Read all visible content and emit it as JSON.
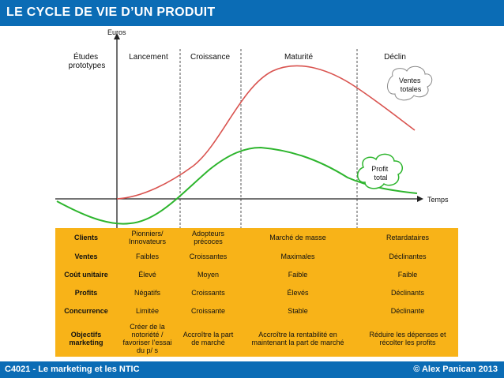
{
  "title": "LE CYCLE DE VIE D’UN PRODUIT",
  "footer": {
    "left": "C4021 - Le marketing et les NTIC",
    "right": "© Alex Panican 2013"
  },
  "axes": {
    "y_label": "Euros",
    "x_label": "Temps"
  },
  "phases": [
    {
      "lines": [
        "Études",
        "prototypes"
      ]
    },
    {
      "lines": [
        "Lancement"
      ]
    },
    {
      "lines": [
        "Croissance"
      ]
    },
    {
      "lines": [
        "Maturité"
      ]
    },
    {
      "lines": [
        "Déclin"
      ]
    }
  ],
  "callouts": {
    "sales": {
      "lines": [
        "Ventes",
        "totales"
      ]
    },
    "profit": {
      "lines": [
        "Profit",
        "total"
      ]
    }
  },
  "colors": {
    "sales_curve": "#d9534f",
    "profit_curve": "#2db52d",
    "table": "#f8b318",
    "brand": "#0b6cb5"
  },
  "table": {
    "rows": [
      {
        "label": "Clients",
        "cells": [
          "Pionniers/ Innovateurs",
          "Adopteurs précoces",
          "Marché de masse",
          "Retardataires"
        ]
      },
      {
        "label": "Ventes",
        "cells": [
          "Faibles",
          "Croissantes",
          "Maximales",
          "Déclinantes"
        ]
      },
      {
        "label": "Coût unitaire",
        "cells": [
          "Élevé",
          "Moyen",
          "Faible",
          "Faible"
        ]
      },
      {
        "label": "Profits",
        "cells": [
          "Négatifs",
          "Croissants",
          "Élevés",
          "Déclinants"
        ]
      },
      {
        "label": "Concurrence",
        "cells": [
          "Limitée",
          "Croissante",
          "Stable",
          "Déclinante"
        ]
      },
      {
        "label": "Objectifs marketing",
        "cells": [
          "Créer de la notoriété / favoriser l’essai du p/ s",
          "Accroître la part de marché",
          "Accroître la rentabilité en maintenant la part de marché",
          "Réduire les dépenses et récolter les profits"
        ]
      }
    ]
  }
}
